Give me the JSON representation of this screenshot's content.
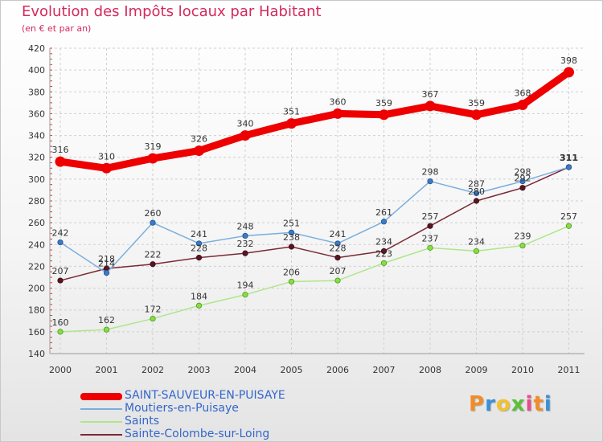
{
  "chart_data": {
    "type": "line",
    "title": "Evolution des Impôts locaux par Habitant",
    "subtitle": "(en € et par an)",
    "xlabel": "",
    "ylabel": "",
    "ylim": [
      140,
      420
    ],
    "yticks": [
      140,
      160,
      180,
      200,
      220,
      240,
      260,
      280,
      300,
      320,
      340,
      360,
      380,
      400,
      420
    ],
    "grid": true,
    "legend_position": "bottom-left",
    "x": [
      "2000",
      "2001",
      "2002",
      "2003",
      "2004",
      "2005",
      "2006",
      "2007",
      "2008",
      "2009",
      "2010",
      "2011"
    ],
    "series": [
      {
        "name": "SAINT-SAUVEUR-EN-PUISAYE",
        "color": "#ee0000",
        "values": [
          316,
          310,
          319,
          326,
          340,
          351,
          360,
          359,
          367,
          359,
          368,
          398
        ]
      },
      {
        "name": "Moutiers-en-Puisaye",
        "color": "#5b9bd5",
        "values": [
          242,
          214,
          260,
          241,
          248,
          251,
          241,
          261,
          298,
          287,
          298,
          311
        ]
      },
      {
        "name": "Saints",
        "color": "#99dd66",
        "values": [
          160,
          162,
          172,
          184,
          194,
          206,
          207,
          223,
          237,
          234,
          239,
          257
        ]
      },
      {
        "name": "Sainte-Colombe-sur-Loing",
        "color": "#6b1f2a",
        "values": [
          207,
          218,
          222,
          228,
          232,
          238,
          228,
          234,
          257,
          280,
          292,
          311
        ]
      }
    ]
  },
  "logo": {
    "letters": [
      "P",
      "r",
      "o",
      "x",
      "i",
      "t",
      "i"
    ],
    "colors": [
      "#f28c28",
      "#3a8fd8",
      "#f2c12e",
      "#5cbf3a",
      "#e84c8b",
      "#f28c28",
      "#3a8fd8"
    ]
  }
}
